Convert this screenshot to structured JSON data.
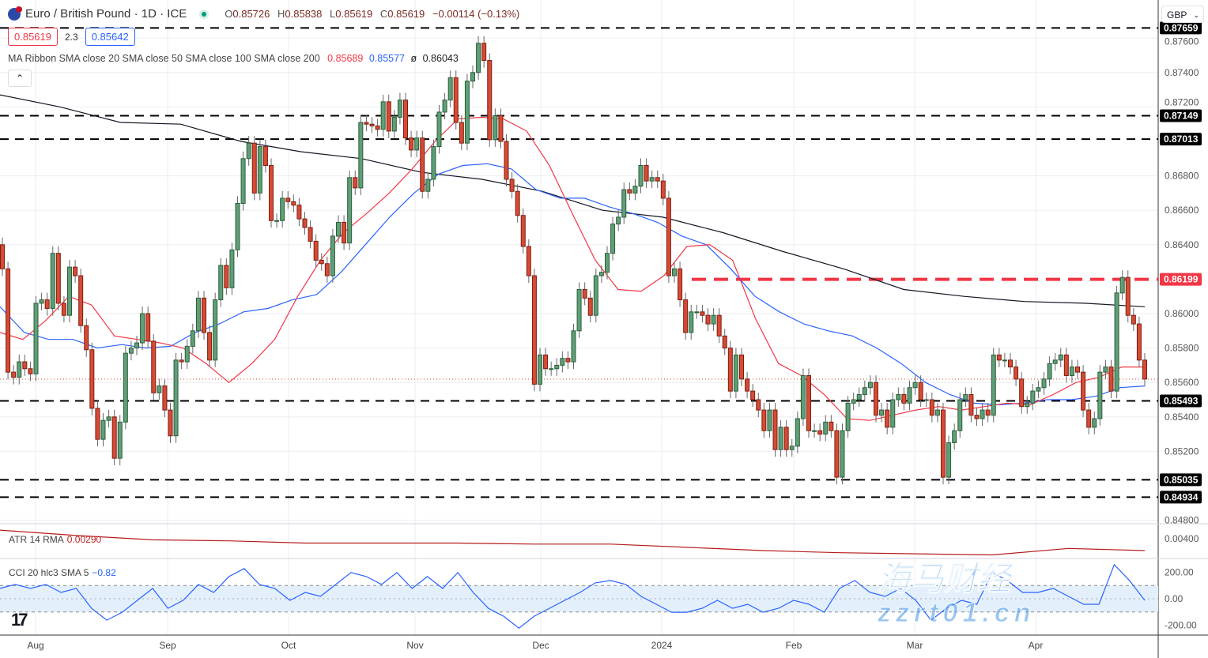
{
  "header": {
    "symbol_title": "Euro / British Pound · 1D · ICE",
    "open_label": "O",
    "open": "0.85726",
    "high_label": "H",
    "high": "0.85838",
    "low_label": "L",
    "low": "0.85619",
    "close_label": "C",
    "close": "0.85619",
    "change": "−0.00114 (−0.13%)",
    "bid": "0.85619",
    "spread": "2.3",
    "ask": "0.85642",
    "currency": "GBP",
    "collapse_icon": "chevron-up"
  },
  "indicators": {
    "ma_ribbon": {
      "label": "MA Ribbon SMA close 20 SMA close 50 SMA close 100 SMA close 200",
      "sma20": "0.85689",
      "sma50": "0.85577",
      "sma100": "ø",
      "sma200": "0.86043"
    },
    "atr": {
      "label": "ATR 14 RMA",
      "value": "0.00290"
    },
    "cci": {
      "label": "CCI 20 hlc3 SMA 5",
      "value": "−0.82"
    }
  },
  "watermark": {
    "line1": "海马财经",
    "line2": "zzrt01.cn"
  },
  "colors": {
    "up": "#5f9f76",
    "up_border": "#2c5e3c",
    "down": "#d84a33",
    "down_border": "#7a1f14",
    "sma20": "#f23645",
    "sma50": "#2962ff",
    "sma200": "#131722",
    "atr": "#b71c1c",
    "cci": "#2962ff",
    "level_line": "#000000",
    "resistance": "#f23645"
  },
  "chart_data": {
    "type": "candlestick",
    "title": "Euro / British Pound · 1D · ICE",
    "x_tick_labels": [
      "Aug",
      "Sep",
      "Oct",
      "Nov",
      "Dec",
      "2024",
      "Feb",
      "Mar",
      "Apr"
    ],
    "y_tick_labels": [
      "0.87600",
      "0.87400",
      "0.87200",
      "0.86800",
      "0.86600",
      "0.86400",
      "0.86000",
      "0.85800",
      "0.85600",
      "0.85400",
      "0.85200",
      "0.84800"
    ],
    "ylim": [
      0.8478,
      0.8775
    ],
    "first_open": 0.864,
    "close": [
      0.8626,
      0.8566,
      0.8563,
      0.8572,
      0.8568,
      0.8565,
      0.8606,
      0.8608,
      0.8603,
      0.8635,
      0.8606,
      0.8599,
      0.8627,
      0.8622,
      0.8593,
      0.8579,
      0.8545,
      0.8527,
      0.8538,
      0.854,
      0.8516,
      0.8537,
      0.8577,
      0.858,
      0.8583,
      0.86,
      0.8584,
      0.8554,
      0.8558,
      0.8544,
      0.8529,
      0.8573,
      0.8572,
      0.8581,
      0.859,
      0.8609,
      0.8589,
      0.8573,
      0.8608,
      0.8628,
      0.8615,
      0.8637,
      0.8664,
      0.869,
      0.8699,
      0.867,
      0.8697,
      0.8686,
      0.8654,
      0.8654,
      0.8667,
      0.8665,
      0.8663,
      0.8655,
      0.865,
      0.8642,
      0.8631,
      0.8629,
      0.8622,
      0.8645,
      0.8653,
      0.8641,
      0.8679,
      0.8673,
      0.8711,
      0.871,
      0.8709,
      0.8707,
      0.8723,
      0.8706,
      0.8714,
      0.8724,
      0.8702,
      0.8695,
      0.8702,
      0.8671,
      0.8678,
      0.8697,
      0.8717,
      0.8724,
      0.8737,
      0.8711,
      0.8699,
      0.8735,
      0.874,
      0.8757,
      0.8747,
      0.8701,
      0.8715,
      0.87,
      0.8678,
      0.8671,
      0.8657,
      0.8639,
      0.8622,
      0.8559,
      0.8576,
      0.8568,
      0.8568,
      0.857,
      0.8574,
      0.8572,
      0.859,
      0.8614,
      0.8609,
      0.8599,
      0.8622,
      0.8624,
      0.8635,
      0.8652,
      0.8656,
      0.8672,
      0.867,
      0.8674,
      0.8686,
      0.8677,
      0.8679,
      0.8677,
      0.8667,
      0.8622,
      0.8626,
      0.8608,
      0.8589,
      0.8601,
      0.8601,
      0.8599,
      0.8594,
      0.8599,
      0.8587,
      0.858,
      0.8555,
      0.8576,
      0.8562,
      0.8555,
      0.855,
      0.8544,
      0.8532,
      0.8544,
      0.8521,
      0.8534,
      0.8521,
      0.8523,
      0.8539,
      0.8564,
      0.8532,
      0.8532,
      0.853,
      0.8537,
      0.8532,
      0.8505,
      0.8532,
      0.8548,
      0.855,
      0.8553,
      0.8557,
      0.856,
      0.8541,
      0.8544,
      0.8534,
      0.855,
      0.8553,
      0.8548,
      0.8557,
      0.856,
      0.855,
      0.855,
      0.8541,
      0.8544,
      0.8505,
      0.8525,
      0.8532,
      0.855,
      0.8553,
      0.8541,
      0.8539,
      0.8544,
      0.8541,
      0.8576,
      0.8573,
      0.8573,
      0.8569,
      0.8562,
      0.8546,
      0.8548,
      0.8555,
      0.8557,
      0.8562,
      0.8571,
      0.8573,
      0.8576,
      0.8564,
      0.8569,
      0.8566,
      0.8544,
      0.8534,
      0.8539,
      0.8566,
      0.8569,
      0.8555,
      0.8612,
      0.8621,
      0.8599,
      0.8594,
      0.8573,
      0.8562
    ],
    "sma20": [
      0.8589,
      0.8585,
      0.8596,
      0.861,
      0.8605,
      0.8587,
      0.8585,
      0.8583,
      0.858,
      0.8571,
      0.856,
      0.8571,
      0.8585,
      0.861,
      0.8631,
      0.8647,
      0.8658,
      0.867,
      0.8684,
      0.87,
      0.8713,
      0.8714,
      0.8713,
      0.8706,
      0.8686,
      0.8658,
      0.8631,
      0.8614,
      0.8613,
      0.8622,
      0.8639,
      0.864,
      0.8631,
      0.8597,
      0.8571,
      0.8564,
      0.8553,
      0.8539,
      0.8538,
      0.8541,
      0.8544,
      0.8546,
      0.8544,
      0.8546,
      0.8548,
      0.8547,
      0.8553,
      0.856,
      0.8563,
      0.8569,
      0.8569
    ],
    "sma50": [
      0.8604,
      0.8589,
      0.8585,
      0.8585,
      0.858,
      0.8582,
      0.858,
      0.8581,
      0.8589,
      0.8594,
      0.8601,
      0.8603,
      0.8608,
      0.8611,
      0.8624,
      0.864,
      0.8656,
      0.867,
      0.8681,
      0.8686,
      0.8687,
      0.8684,
      0.8672,
      0.8667,
      0.8667,
      0.8662,
      0.8658,
      0.8653,
      0.8645,
      0.864,
      0.8626,
      0.861,
      0.8601,
      0.8594,
      0.859,
      0.8587,
      0.858,
      0.8571,
      0.856,
      0.8553,
      0.8548,
      0.8547,
      0.8548,
      0.855,
      0.855,
      0.8552,
      0.8557,
      0.8558
    ],
    "sma200": [
      0.8727,
      0.872,
      0.8711,
      0.871,
      0.87,
      0.8694,
      0.869,
      0.8682,
      0.8678,
      0.8671,
      0.866,
      0.8656,
      0.8647,
      0.8636,
      0.8626,
      0.8614,
      0.861,
      0.8607,
      0.8606,
      0.8604
    ],
    "atr": [
      0.0048,
      0.0043,
      0.0039,
      0.0038,
      0.0036,
      0.0036,
      0.0036,
      0.0035,
      0.0035,
      0.0032,
      0.0029,
      0.0027,
      0.0026,
      0.0025,
      0.0031,
      0.0029
    ],
    "atr_ylim": [
      0.001,
      0.006
    ],
    "cci": [
      78,
      108,
      78,
      108,
      48,
      78,
      -72,
      -162,
      -102,
      -12,
      78,
      -72,
      -12,
      108,
      48,
      168,
      228,
      108,
      78,
      -12,
      48,
      18,
      108,
      198,
      168,
      108,
      198,
      78,
      168,
      78,
      198,
      48,
      -72,
      -132,
      -222,
      -132,
      -72,
      -12,
      48,
      120,
      138,
      108,
      18,
      -42,
      -102,
      -102,
      -72,
      -12,
      -72,
      -42,
      -102,
      -72,
      -12,
      -42,
      -102,
      78,
      138,
      48,
      18,
      78,
      -12,
      -162,
      -72,
      -12,
      -42,
      198,
      138,
      48,
      48,
      78,
      18,
      -42,
      -42,
      258,
      138,
      -12
    ],
    "cci_ylim": [
      -280,
      300
    ],
    "cci_ticks": [
      "200.00",
      "0.00",
      "-200.00"
    ],
    "atr_ticks": [
      "0.00400"
    ],
    "levels": [
      {
        "value": 0.87659,
        "label": "0.87659",
        "style": "dashed"
      },
      {
        "value": 0.87149,
        "label": "0.87149",
        "style": "dashed"
      },
      {
        "value": 0.87013,
        "label": "0.87013",
        "style": "dashed"
      },
      {
        "value": 0.85493,
        "label": "0.85493",
        "style": "dashed"
      },
      {
        "value": 0.85035,
        "label": "0.85035",
        "style": "dashed"
      },
      {
        "value": 0.84934,
        "label": "0.84934",
        "style": "dashed"
      }
    ],
    "resistance": {
      "value": 0.86199,
      "label": "0.86199",
      "starts": "2024-01"
    },
    "last_price": 0.85619,
    "legend": "top-left",
    "grid": true
  }
}
